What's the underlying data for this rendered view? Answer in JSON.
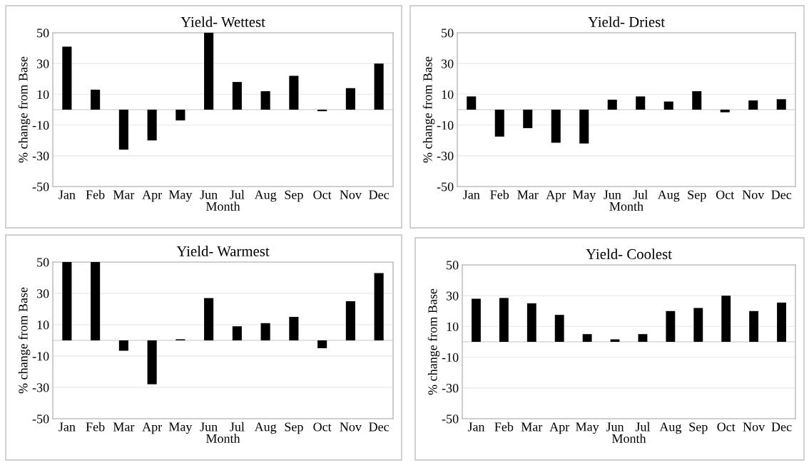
{
  "chart_data": [
    {
      "type": "bar",
      "title": "Yield- Wettest",
      "xlabel": "Month",
      "ylabel": "% change from Base",
      "categories": [
        "Jan",
        "Feb",
        "Mar",
        "Apr",
        "May",
        "Jun",
        "Jul",
        "Aug",
        "Sep",
        "Oct",
        "Nov",
        "Dec"
      ],
      "values": [
        41,
        13,
        -26,
        -20,
        -7,
        50,
        18,
        12,
        22,
        -1,
        14,
        30
      ],
      "color": "#000000",
      "ylim": [
        -50,
        50
      ],
      "yticks": [
        -50,
        -30,
        -10,
        10,
        30,
        50
      ],
      "grid": "y"
    },
    {
      "type": "bar",
      "title": "Yield- Driest",
      "xlabel": "Month",
      "ylabel": "% change from Base",
      "categories": [
        "Jan",
        "Feb",
        "Mar",
        "Apr",
        "May",
        "Jun",
        "Jul",
        "Aug",
        "Sep",
        "Oct",
        "Nov",
        "Dec"
      ],
      "values": [
        8.6,
        -17.5,
        -12,
        -21.5,
        -22,
        6.5,
        8.6,
        5.3,
        12,
        -1.7,
        6,
        6.8
      ],
      "color": "#000000",
      "ylim": [
        -50,
        50
      ],
      "yticks": [
        -50,
        -30,
        -10,
        10,
        30,
        50
      ],
      "grid": "y"
    },
    {
      "type": "bar",
      "title": "Yield- Warmest",
      "xlabel": "Month",
      "ylabel": "% change from Base",
      "categories": [
        "Jan",
        "Feb",
        "Mar",
        "Apr",
        "May",
        "Jun",
        "Jul",
        "Aug",
        "Sep",
        "Oct",
        "Nov",
        "Dec"
      ],
      "values": [
        50,
        50,
        -6.6,
        -28,
        0.7,
        27,
        9,
        11,
        15,
        -5,
        25,
        43
      ],
      "color": "#000000",
      "ylim": [
        -50,
        50
      ],
      "yticks": [
        -50,
        -30,
        -10,
        10,
        30,
        50
      ],
      "grid": "y"
    },
    {
      "type": "bar",
      "title": "Yield- Coolest",
      "xlabel": "Month",
      "ylabel": "% change from Base",
      "categories": [
        "Jan",
        "Feb",
        "Mar",
        "Apr",
        "May",
        "Jun",
        "Jul",
        "Aug",
        "Sep",
        "Oct",
        "Nov",
        "Dec"
      ],
      "values": [
        28,
        28.5,
        25,
        17.5,
        5,
        1.6,
        5,
        20,
        22,
        30,
        20,
        25.5
      ],
      "color": "#000000",
      "ylim": [
        -50,
        50
      ],
      "yticks": [
        -50,
        -30,
        -10,
        10,
        30,
        50
      ],
      "grid": "y"
    }
  ]
}
